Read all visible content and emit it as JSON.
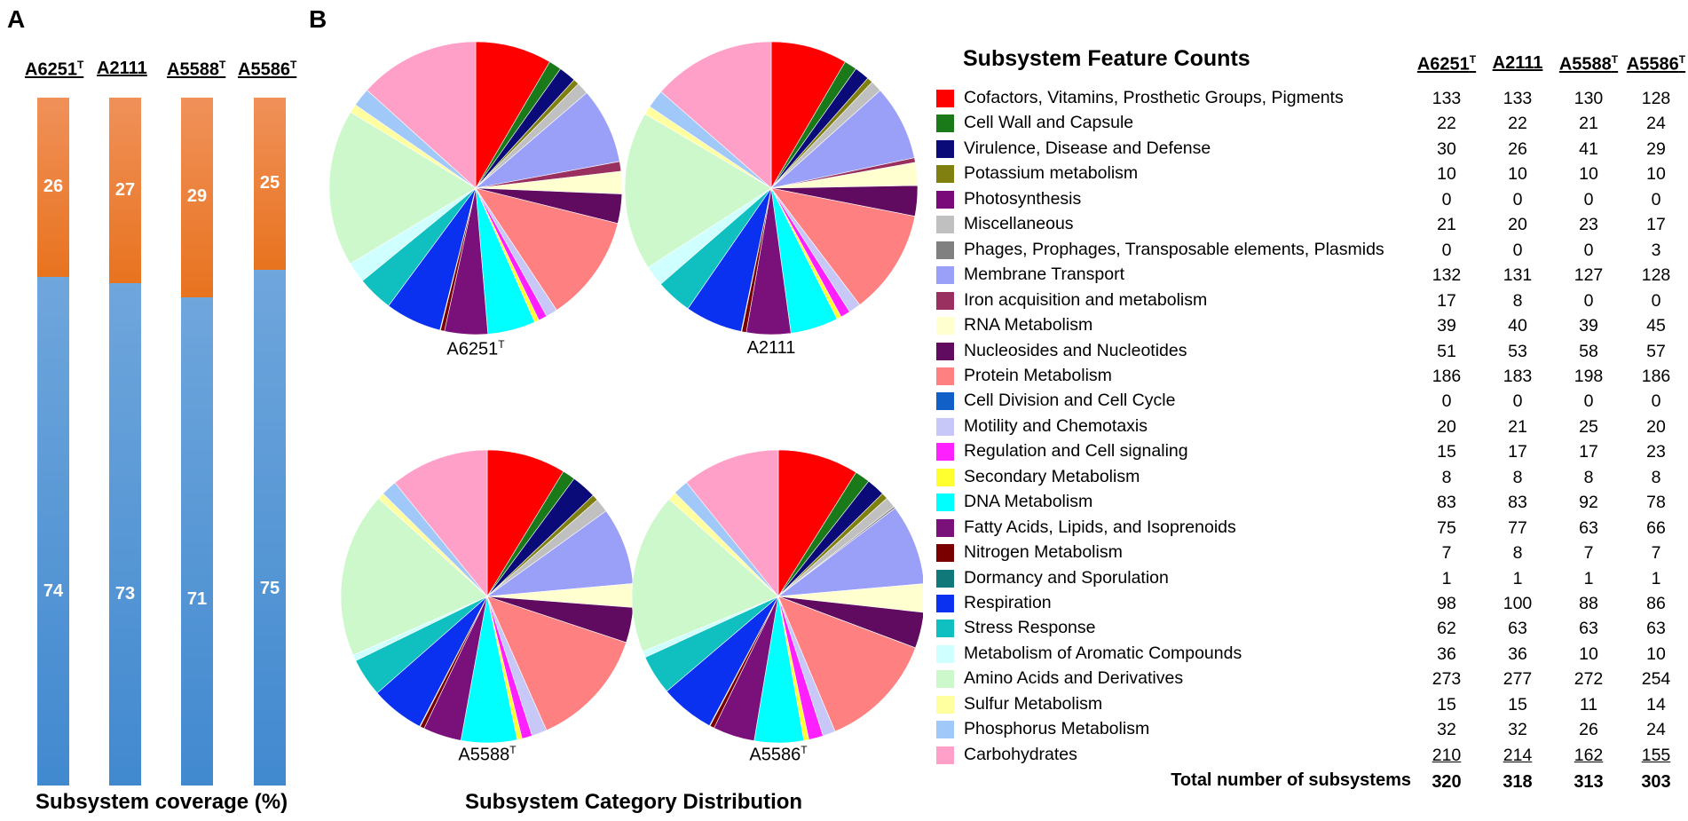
{
  "panel_a_letter": "A",
  "panel_b_letter": "B",
  "panel_a_caption": "Subsystem coverage (%)",
  "panel_b_caption": "Subsystem Category Distribution",
  "strains": [
    {
      "base": "A6251",
      "sup": "T"
    },
    {
      "base": "A2111",
      "sup": ""
    },
    {
      "base": "A5588",
      "sup": "T"
    },
    {
      "base": "A5586",
      "sup": "T"
    }
  ],
  "table_title": "Subsystem Feature Counts",
  "total_label": "Total number of subsystems",
  "categories": [
    {
      "name": "Cofactors, Vitamins, Prosthetic Groups, Pigments",
      "color": "#ff0000",
      "counts": [
        133,
        133,
        130,
        128
      ]
    },
    {
      "name": "Cell Wall and Capsule",
      "color": "#1a7a1a",
      "counts": [
        22,
        22,
        21,
        24
      ]
    },
    {
      "name": "Virulence, Disease and Defense",
      "color": "#0a0a78",
      "counts": [
        30,
        26,
        41,
        29
      ]
    },
    {
      "name": "Potassium metabolism",
      "color": "#808010",
      "counts": [
        10,
        10,
        10,
        10
      ]
    },
    {
      "name": "Photosynthesis",
      "color": "#7a0a7a",
      "counts": [
        0,
        0,
        0,
        0
      ]
    },
    {
      "name": "Miscellaneous",
      "color": "#c0c0c0",
      "counts": [
        21,
        20,
        23,
        17
      ]
    },
    {
      "name": "Phages, Prophages, Transposable elements, Plasmids",
      "color": "#808080",
      "counts": [
        0,
        0,
        0,
        3
      ]
    },
    {
      "name": "Membrane Transport",
      "color": "#9aa0f8",
      "counts": [
        132,
        131,
        127,
        128
      ]
    },
    {
      "name": "Iron acquisition and metabolism",
      "color": "#9a3060",
      "counts": [
        17,
        8,
        0,
        0
      ]
    },
    {
      "name": "RNA Metabolism",
      "color": "#ffffd0",
      "counts": [
        39,
        40,
        39,
        45
      ]
    },
    {
      "name": "Nucleosides and Nucleotides",
      "color": "#600a60",
      "counts": [
        51,
        53,
        58,
        57
      ]
    },
    {
      "name": "Protein Metabolism",
      "color": "#ff8080",
      "counts": [
        186,
        183,
        198,
        186
      ]
    },
    {
      "name": "Cell Division and Cell Cycle",
      "color": "#1060c8",
      "counts": [
        0,
        0,
        0,
        0
      ]
    },
    {
      "name": "Motility and Chemotaxis",
      "color": "#c8c8f8",
      "counts": [
        20,
        21,
        25,
        20
      ]
    },
    {
      "name": "Regulation and Cell signaling",
      "color": "#ff20ff",
      "counts": [
        15,
        17,
        17,
        23
      ]
    },
    {
      "name": "Secondary Metabolism",
      "color": "#ffff30",
      "counts": [
        8,
        8,
        8,
        8
      ]
    },
    {
      "name": "DNA Metabolism",
      "color": "#00ffff",
      "counts": [
        83,
        83,
        92,
        78
      ]
    },
    {
      "name": "Fatty Acids, Lipids, and Isoprenoids",
      "color": "#7a107a",
      "counts": [
        75,
        77,
        63,
        66
      ]
    },
    {
      "name": "Nitrogen Metabolism",
      "color": "#7a0000",
      "counts": [
        7,
        8,
        7,
        7
      ]
    },
    {
      "name": "Dormancy and Sporulation",
      "color": "#107878",
      "counts": [
        1,
        1,
        1,
        1
      ]
    },
    {
      "name": "Respiration",
      "color": "#0a30f0",
      "counts": [
        98,
        100,
        88,
        86
      ]
    },
    {
      "name": "Stress Response",
      "color": "#10c0c0",
      "counts": [
        62,
        63,
        63,
        63
      ]
    },
    {
      "name": "Metabolism of Aromatic Compounds",
      "color": "#d0ffff",
      "counts": [
        36,
        36,
        10,
        10
      ]
    },
    {
      "name": "Amino Acids and Derivatives",
      "color": "#ccf8cc",
      "counts": [
        273,
        277,
        272,
        254
      ]
    },
    {
      "name": "Sulfur Metabolism",
      "color": "#ffffa0",
      "counts": [
        15,
        15,
        11,
        14
      ]
    },
    {
      "name": "Phosphorus Metabolism",
      "color": "#a0c8f8",
      "counts": [
        32,
        32,
        26,
        24
      ]
    },
    {
      "name": "Carbohydrates",
      "color": "#ffa0c8",
      "counts": [
        210,
        214,
        162,
        155
      ]
    }
  ],
  "totals": [
    320,
    318,
    313,
    303
  ],
  "chart_data": [
    {
      "type": "bar",
      "stacked": true,
      "title": "Subsystem coverage (%)",
      "categories": [
        "A6251T",
        "A2111",
        "A5588T",
        "A5586T"
      ],
      "ylim": [
        0,
        100
      ],
      "series": [
        {
          "values": [
            74,
            73,
            71,
            75
          ],
          "color": "#4a90d6"
        },
        {
          "values": [
            26,
            27,
            29,
            25
          ],
          "color": "#ee7a2c"
        }
      ]
    },
    {
      "type": "pie",
      "title": "Subsystem Category Distribution",
      "note": "four pies, one per strain; slice values are the Subsystem Feature Counts table columns"
    }
  ]
}
